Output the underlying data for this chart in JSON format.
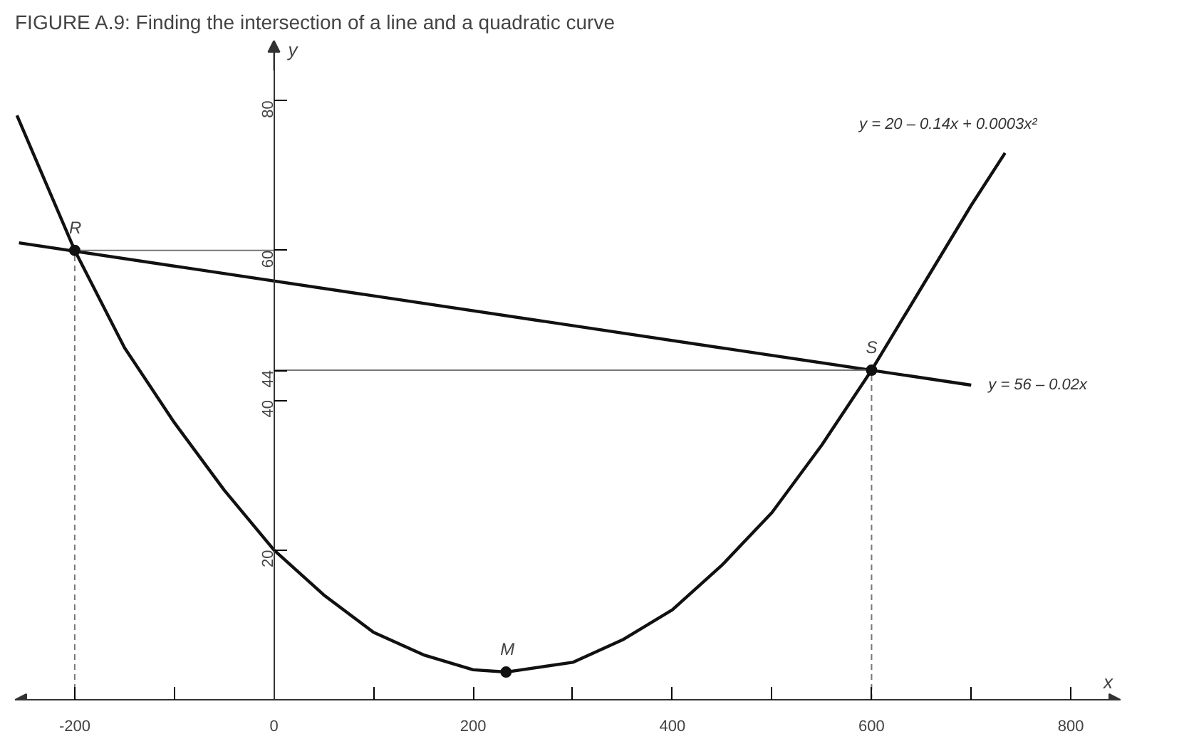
{
  "chart_data": {
    "type": "line",
    "title": "FIGURE A.9: Finding the intersection of a line and a quadratic curve",
    "xlabel": "x",
    "ylabel": "y",
    "xlim": [
      -260,
      850
    ],
    "ylim": [
      0,
      88
    ],
    "xticks": [
      -200,
      {
        "value": -100,
        "label": null
      },
      0,
      {
        "value": 100,
        "label": null
      },
      200,
      {
        "value": 300,
        "label": null
      },
      400,
      {
        "value": 500,
        "label": null
      },
      600,
      {
        "value": 700,
        "label": null
      },
      800
    ],
    "yticks": [
      20,
      40,
      44,
      60,
      80
    ],
    "grid": false,
    "legend": false,
    "series": [
      {
        "name": "y = 20 – 0.14x + 0.0003x²",
        "color": "#111111",
        "x": [
          -258,
          -200,
          -150,
          -100,
          -50,
          0,
          50,
          100,
          150,
          200,
          233,
          300,
          350,
          400,
          450,
          500,
          550,
          600,
          650,
          700,
          734
        ],
        "values": [
          78,
          60,
          47,
          37,
          28,
          20,
          14,
          9,
          6,
          4,
          3.7,
          5,
          8,
          12,
          18,
          25,
          34,
          44,
          55,
          66,
          73
        ]
      },
      {
        "name": "y = 56 – 0.02x",
        "color": "#111111",
        "x": [
          -256,
          700
        ],
        "values": [
          61,
          42
        ]
      },
      {
        "color": "#777777",
        "x": [
          -200,
          0
        ],
        "values": [
          60,
          60
        ]
      },
      {
        "color": "#777777",
        "x": [
          0,
          600
        ],
        "values": [
          44,
          44
        ]
      },
      {
        "color": "#777777",
        "line_style": "dashed",
        "x": [
          -200,
          -200
        ],
        "values": [
          0,
          60
        ]
      },
      {
        "color": "#777777",
        "line_style": "dashed",
        "x": [
          600,
          600
        ],
        "values": [
          0,
          44
        ]
      },
      {
        "type": "scatter",
        "color": "#111111",
        "marker": "circle",
        "x": [
          -200,
          600,
          233
        ],
        "values": [
          60,
          44,
          3.7
        ]
      }
    ],
    "annotations": [
      {
        "text": "R",
        "x": -200,
        "y": 60
      },
      {
        "text": "S",
        "x": 600,
        "y": 44
      },
      {
        "text": "M",
        "x": 233,
        "y": 3.7
      }
    ]
  }
}
